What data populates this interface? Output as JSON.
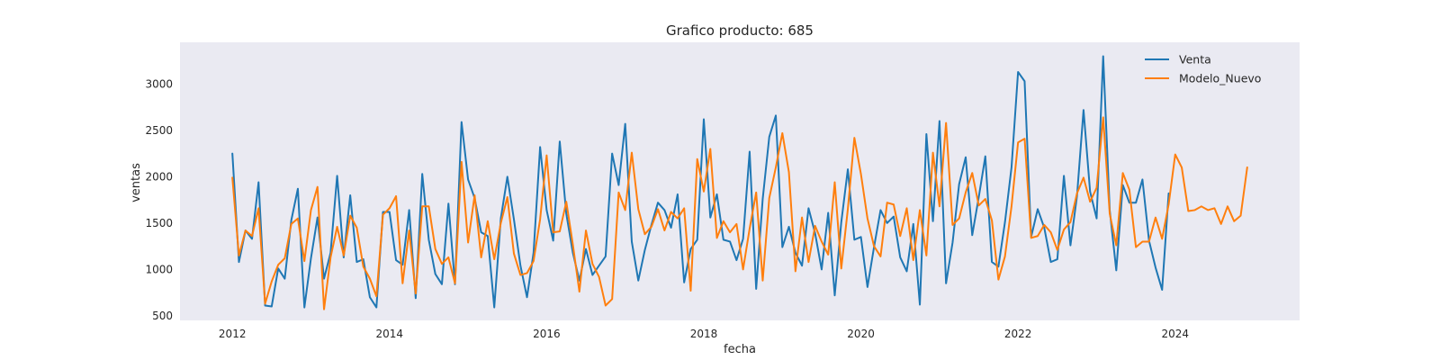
{
  "chart_data": {
    "type": "line",
    "title": "Grafico producto: 685",
    "xlabel": "fecha",
    "ylabel": "ventas",
    "xlim": [
      "2011-05",
      "2025-08"
    ],
    "ylim": [
      450,
      3450
    ],
    "x_ticks": [
      "2012",
      "2014",
      "2016",
      "2018",
      "2020",
      "2022",
      "2024"
    ],
    "y_ticks": [
      "500",
      "1000",
      "1500",
      "2000",
      "2500",
      "3000"
    ],
    "grid": false,
    "legend_position": "top-right",
    "x_start": "2012-01",
    "series": [
      {
        "name": "Venta",
        "color": "#1f77b4",
        "values": [
          2250,
          1080,
          1420,
          1330,
          1940,
          610,
          600,
          1010,
          900,
          1530,
          1870,
          590,
          1120,
          1560,
          900,
          1180,
          2010,
          1130,
          1800,
          1080,
          1110,
          700,
          590,
          1620,
          1620,
          1100,
          1050,
          1640,
          690,
          2030,
          1320,
          950,
          840,
          1710,
          840,
          2590,
          1970,
          1770,
          1400,
          1360,
          590,
          1550,
          2000,
          1540,
          1040,
          700,
          1180,
          2320,
          1640,
          1310,
          2380,
          1600,
          1180,
          880,
          1220,
          940,
          1040,
          1140,
          2250,
          1910,
          2570,
          1300,
          880,
          1210,
          1480,
          1720,
          1640,
          1450,
          1810,
          860,
          1220,
          1320,
          2620,
          1560,
          1810,
          1320,
          1300,
          1100,
          1330,
          2270,
          790,
          1760,
          2430,
          2660,
          1240,
          1460,
          1180,
          1040,
          1660,
          1390,
          1000,
          1610,
          720,
          1510,
          2080,
          1320,
          1350,
          810,
          1240,
          1640,
          1500,
          1570,
          1130,
          980,
          1490,
          620,
          2460,
          1520,
          2600,
          850,
          1290,
          1920,
          2210,
          1370,
          1780,
          2220,
          1080,
          1030,
          1510,
          2100,
          3130,
          3030,
          1350,
          1650,
          1450,
          1080,
          1110,
          2010,
          1260,
          1790,
          2720,
          1840,
          1550,
          3300,
          1640,
          990,
          1910,
          1720,
          1720,
          1970,
          1310,
          1020,
          780,
          1820
        ],
        "end_trim": 12
      },
      {
        "name": "Modelo_Nuevo",
        "color": "#ff7f0e",
        "values": [
          1990,
          1150,
          1420,
          1360,
          1660,
          630,
          870,
          1050,
          1120,
          1490,
          1550,
          1090,
          1640,
          1890,
          570,
          1130,
          1460,
          1150,
          1580,
          1450,
          1030,
          900,
          710,
          1590,
          1660,
          1790,
          850,
          1420,
          740,
          1680,
          1680,
          1220,
          1060,
          1130,
          850,
          2160,
          1290,
          1800,
          1130,
          1520,
          1110,
          1500,
          1780,
          1170,
          940,
          960,
          1090,
          1540,
          2230,
          1400,
          1410,
          1730,
          1270,
          760,
          1420,
          1060,
          920,
          610,
          680,
          1830,
          1640,
          2260,
          1650,
          1380,
          1460,
          1650,
          1420,
          1620,
          1550,
          1660,
          770,
          2190,
          1840,
          2300,
          1340,
          1520,
          1400,
          1490,
          1000,
          1440,
          1830,
          880,
          1770,
          2100,
          2470,
          2050,
          980,
          1560,
          1080,
          1470,
          1300,
          1160,
          1940,
          1010,
          1650,
          2420,
          2030,
          1550,
          1250,
          1140,
          1720,
          1700,
          1360,
          1660,
          1100,
          1640,
          1150,
          2260,
          1680,
          2580,
          1480,
          1550,
          1830,
          2040,
          1690,
          1760,
          1530,
          890,
          1140,
          1680,
          2370,
          2410,
          1340,
          1360,
          1480,
          1400,
          1210,
          1430,
          1510,
          1820,
          1990,
          1730,
          1880,
          2640,
          1600,
          1260,
          2040,
          1860,
          1240,
          1300,
          1300,
          1560,
          1330,
          1700,
          2240,
          2100,
          1630,
          1640,
          1680,
          1640,
          1660,
          1490,
          1680,
          1520,
          1580,
          2100
        ]
      }
    ]
  }
}
